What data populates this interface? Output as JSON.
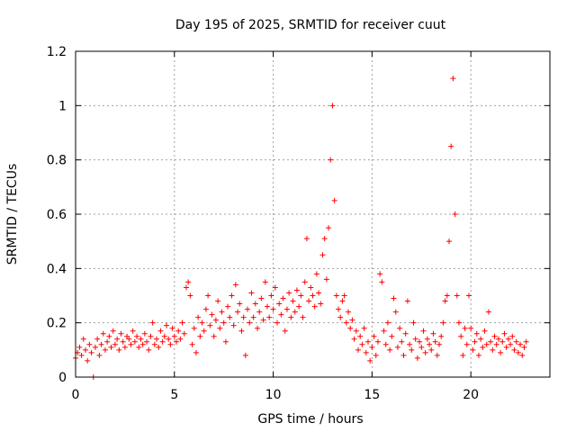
{
  "chart_data": {
    "type": "scatter",
    "title": "Day 195 of 2025, SRMTID for receiver cuut",
    "xlabel": "GPS time / hours",
    "ylabel": "SRMTID / TECUs",
    "xlim": [
      0,
      24
    ],
    "ylim": [
      0,
      1.2
    ],
    "xticks": [
      {
        "value": 0,
        "label": "0"
      },
      {
        "value": 5,
        "label": "5"
      },
      {
        "value": 10,
        "label": "10"
      },
      {
        "value": 15,
        "label": "15"
      },
      {
        "value": 20,
        "label": "20"
      }
    ],
    "yticks": [
      {
        "value": 0,
        "label": "0"
      },
      {
        "value": 0.2,
        "label": "0.2"
      },
      {
        "value": 0.4,
        "label": "0.4"
      },
      {
        "value": 0.6,
        "label": "0.6"
      },
      {
        "value": 0.8,
        "label": "0.8"
      },
      {
        "value": 1.0,
        "label": "1"
      },
      {
        "value": 1.2,
        "label": "1.2"
      }
    ],
    "grid": true,
    "marker": "+",
    "color": "#ff0000",
    "series": [
      {
        "name": "SRMTID",
        "points": [
          [
            0.0,
            0.07
          ],
          [
            0.1,
            0.09
          ],
          [
            0.2,
            0.11
          ],
          [
            0.3,
            0.08
          ],
          [
            0.4,
            0.14
          ],
          [
            0.5,
            0.1
          ],
          [
            0.6,
            0.06
          ],
          [
            0.7,
            0.12
          ],
          [
            0.8,
            0.09
          ],
          [
            0.9,
            0.0
          ],
          [
            1.0,
            0.11
          ],
          [
            1.1,
            0.14
          ],
          [
            1.2,
            0.08
          ],
          [
            1.3,
            0.12
          ],
          [
            1.4,
            0.16
          ],
          [
            1.5,
            0.1
          ],
          [
            1.6,
            0.13
          ],
          [
            1.7,
            0.15
          ],
          [
            1.8,
            0.11
          ],
          [
            1.9,
            0.17
          ],
          [
            2.0,
            0.12
          ],
          [
            2.1,
            0.14
          ],
          [
            2.2,
            0.1
          ],
          [
            2.3,
            0.16
          ],
          [
            2.4,
            0.13
          ],
          [
            2.5,
            0.11
          ],
          [
            2.6,
            0.15
          ],
          [
            2.7,
            0.14
          ],
          [
            2.8,
            0.12
          ],
          [
            2.9,
            0.17
          ],
          [
            3.0,
            0.13
          ],
          [
            3.1,
            0.15
          ],
          [
            3.2,
            0.11
          ],
          [
            3.3,
            0.14
          ],
          [
            3.4,
            0.12
          ],
          [
            3.5,
            0.16
          ],
          [
            3.6,
            0.13
          ],
          [
            3.7,
            0.1
          ],
          [
            3.8,
            0.15
          ],
          [
            3.9,
            0.2
          ],
          [
            4.0,
            0.12
          ],
          [
            4.1,
            0.14
          ],
          [
            4.2,
            0.11
          ],
          [
            4.3,
            0.17
          ],
          [
            4.4,
            0.13
          ],
          [
            4.5,
            0.15
          ],
          [
            4.6,
            0.19
          ],
          [
            4.7,
            0.14
          ],
          [
            4.8,
            0.12
          ],
          [
            4.9,
            0.18
          ],
          [
            5.0,
            0.15
          ],
          [
            5.1,
            0.13
          ],
          [
            5.2,
            0.17
          ],
          [
            5.3,
            0.14
          ],
          [
            5.4,
            0.2
          ],
          [
            5.5,
            0.16
          ],
          [
            5.6,
            0.33
          ],
          [
            5.7,
            0.35
          ],
          [
            5.8,
            0.3
          ],
          [
            5.9,
            0.12
          ],
          [
            6.0,
            0.18
          ],
          [
            6.1,
            0.09
          ],
          [
            6.2,
            0.22
          ],
          [
            6.3,
            0.15
          ],
          [
            6.4,
            0.2
          ],
          [
            6.5,
            0.17
          ],
          [
            6.6,
            0.25
          ],
          [
            6.7,
            0.3
          ],
          [
            6.8,
            0.19
          ],
          [
            6.9,
            0.23
          ],
          [
            7.0,
            0.15
          ],
          [
            7.1,
            0.21
          ],
          [
            7.2,
            0.28
          ],
          [
            7.3,
            0.18
          ],
          [
            7.4,
            0.24
          ],
          [
            7.5,
            0.2
          ],
          [
            7.6,
            0.13
          ],
          [
            7.7,
            0.26
          ],
          [
            7.8,
            0.22
          ],
          [
            7.9,
            0.3
          ],
          [
            8.0,
            0.19
          ],
          [
            8.1,
            0.34
          ],
          [
            8.2,
            0.24
          ],
          [
            8.3,
            0.27
          ],
          [
            8.4,
            0.17
          ],
          [
            8.5,
            0.22
          ],
          [
            8.6,
            0.08
          ],
          [
            8.7,
            0.25
          ],
          [
            8.8,
            0.2
          ],
          [
            8.9,
            0.31
          ],
          [
            9.0,
            0.22
          ],
          [
            9.1,
            0.27
          ],
          [
            9.2,
            0.18
          ],
          [
            9.3,
            0.24
          ],
          [
            9.4,
            0.29
          ],
          [
            9.5,
            0.21
          ],
          [
            9.6,
            0.35
          ],
          [
            9.7,
            0.26
          ],
          [
            9.8,
            0.22
          ],
          [
            9.9,
            0.3
          ],
          [
            10.0,
            0.25
          ],
          [
            10.1,
            0.33
          ],
          [
            10.2,
            0.2
          ],
          [
            10.3,
            0.27
          ],
          [
            10.4,
            0.23
          ],
          [
            10.5,
            0.29
          ],
          [
            10.6,
            0.17
          ],
          [
            10.7,
            0.25
          ],
          [
            10.8,
            0.31
          ],
          [
            10.9,
            0.22
          ],
          [
            11.0,
            0.28
          ],
          [
            11.1,
            0.24
          ],
          [
            11.2,
            0.32
          ],
          [
            11.3,
            0.26
          ],
          [
            11.4,
            0.3
          ],
          [
            11.5,
            0.22
          ],
          [
            11.6,
            0.35
          ],
          [
            11.7,
            0.51
          ],
          [
            11.8,
            0.28
          ],
          [
            11.9,
            0.33
          ],
          [
            12.0,
            0.3
          ],
          [
            12.1,
            0.26
          ],
          [
            12.2,
            0.38
          ],
          [
            12.3,
            0.31
          ],
          [
            12.4,
            0.27
          ],
          [
            12.5,
            0.45
          ],
          [
            12.6,
            0.51
          ],
          [
            12.7,
            0.36
          ],
          [
            12.8,
            0.55
          ],
          [
            12.9,
            0.8
          ],
          [
            13.0,
            1.0
          ],
          [
            13.1,
            0.65
          ],
          [
            13.2,
            0.3
          ],
          [
            13.3,
            0.25
          ],
          [
            13.4,
            0.22
          ],
          [
            13.5,
            0.28
          ],
          [
            13.6,
            0.3
          ],
          [
            13.7,
            0.2
          ],
          [
            13.8,
            0.24
          ],
          [
            13.9,
            0.18
          ],
          [
            14.0,
            0.21
          ],
          [
            14.1,
            0.14
          ],
          [
            14.2,
            0.17
          ],
          [
            14.3,
            0.1
          ],
          [
            14.4,
            0.15
          ],
          [
            14.5,
            0.12
          ],
          [
            14.6,
            0.18
          ],
          [
            14.7,
            0.09
          ],
          [
            14.8,
            0.13
          ],
          [
            14.9,
            0.06
          ],
          [
            15.0,
            0.11
          ],
          [
            15.1,
            0.15
          ],
          [
            15.2,
            0.08
          ],
          [
            15.3,
            0.13
          ],
          [
            15.4,
            0.38
          ],
          [
            15.5,
            0.35
          ],
          [
            15.6,
            0.17
          ],
          [
            15.7,
            0.12
          ],
          [
            15.8,
            0.2
          ],
          [
            15.9,
            0.1
          ],
          [
            16.0,
            0.15
          ],
          [
            16.1,
            0.29
          ],
          [
            16.2,
            0.24
          ],
          [
            16.3,
            0.11
          ],
          [
            16.4,
            0.18
          ],
          [
            16.5,
            0.13
          ],
          [
            16.6,
            0.08
          ],
          [
            16.7,
            0.16
          ],
          [
            16.8,
            0.28
          ],
          [
            16.9,
            0.12
          ],
          [
            17.0,
            0.1
          ],
          [
            17.1,
            0.2
          ],
          [
            17.2,
            0.14
          ],
          [
            17.3,
            0.07
          ],
          [
            17.4,
            0.13
          ],
          [
            17.5,
            0.11
          ],
          [
            17.6,
            0.17
          ],
          [
            17.7,
            0.09
          ],
          [
            17.8,
            0.14
          ],
          [
            17.9,
            0.12
          ],
          [
            18.0,
            0.1
          ],
          [
            18.1,
            0.16
          ],
          [
            18.2,
            0.13
          ],
          [
            18.3,
            0.08
          ],
          [
            18.4,
            0.12
          ],
          [
            18.5,
            0.15
          ],
          [
            18.6,
            0.2
          ],
          [
            18.7,
            0.28
          ],
          [
            18.8,
            0.3
          ],
          [
            18.9,
            0.5
          ],
          [
            19.0,
            0.85
          ],
          [
            19.1,
            1.1
          ],
          [
            19.2,
            0.6
          ],
          [
            19.3,
            0.3
          ],
          [
            19.4,
            0.2
          ],
          [
            19.5,
            0.15
          ],
          [
            19.6,
            0.08
          ],
          [
            19.7,
            0.18
          ],
          [
            19.8,
            0.12
          ],
          [
            19.9,
            0.3
          ],
          [
            20.0,
            0.18
          ],
          [
            20.1,
            0.1
          ],
          [
            20.2,
            0.13
          ],
          [
            20.3,
            0.16
          ],
          [
            20.4,
            0.08
          ],
          [
            20.5,
            0.14
          ],
          [
            20.6,
            0.11
          ],
          [
            20.7,
            0.17
          ],
          [
            20.8,
            0.12
          ],
          [
            20.9,
            0.24
          ],
          [
            21.0,
            0.13
          ],
          [
            21.1,
            0.1
          ],
          [
            21.2,
            0.15
          ],
          [
            21.3,
            0.12
          ],
          [
            21.4,
            0.14
          ],
          [
            21.5,
            0.09
          ],
          [
            21.6,
            0.13
          ],
          [
            21.7,
            0.16
          ],
          [
            21.8,
            0.11
          ],
          [
            21.9,
            0.14
          ],
          [
            22.0,
            0.12
          ],
          [
            22.1,
            0.15
          ],
          [
            22.2,
            0.1
          ],
          [
            22.3,
            0.13
          ],
          [
            22.4,
            0.09
          ],
          [
            22.5,
            0.12
          ],
          [
            22.6,
            0.08
          ],
          [
            22.7,
            0.11
          ],
          [
            22.8,
            0.13
          ]
        ]
      }
    ]
  }
}
